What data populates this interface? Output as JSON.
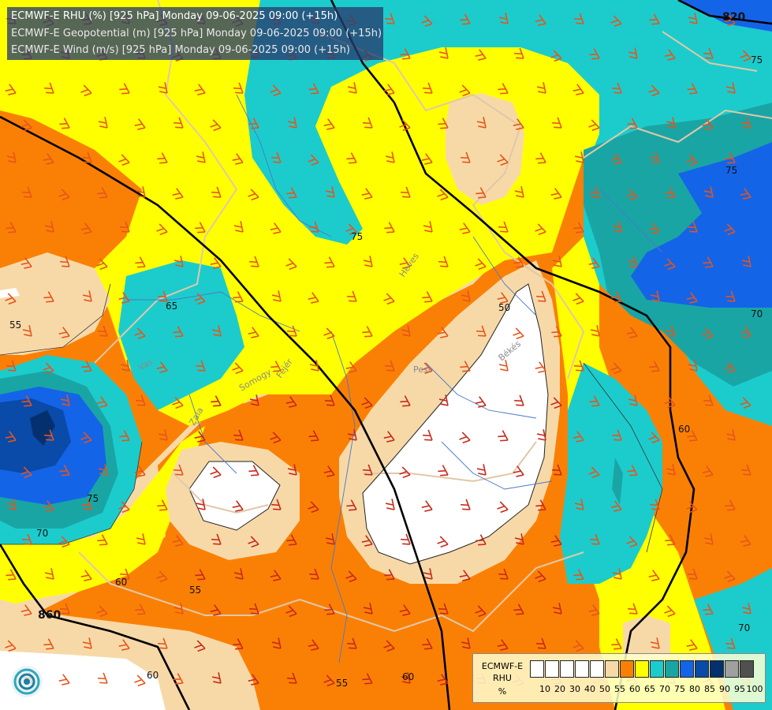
{
  "header": {
    "line1": "ECMWF-E RHU (%) [925 hPa] Monday 09-06-2025 09:00 (+15h)",
    "line2": "ECMWF-E Geopotential (m) [925 hPa] Monday 09-06-2025 09:00 (+15h)",
    "line3": "ECMWF-E Wind (m/s) [925 hPa] Monday 09-06-2025 09:00 (+15h)"
  },
  "legend": {
    "title_line1": "ECMWF-E",
    "title_line2": "RHU",
    "unit": "%",
    "ticks": [
      "10",
      "20",
      "30",
      "40",
      "50",
      "55",
      "60",
      "65",
      "70",
      "75",
      "80",
      "85",
      "90",
      "95",
      "100"
    ],
    "colors": [
      "#ffffff",
      "#ffffff",
      "#ffffff",
      "#ffffff",
      "#ffffff",
      "#f7d9a8",
      "#fa8005",
      "#ffff00",
      "#1ccccc",
      "#1aa5a5",
      "#1464e8",
      "#0a4aa8",
      "#053070",
      "#a0a0a0",
      "#505050"
    ]
  },
  "contour_labels": {
    "rhu": [
      "55",
      "65",
      "55",
      "75",
      "50",
      "75",
      "70",
      "75",
      "70",
      "60",
      "55",
      "60",
      "55",
      "60",
      "60",
      "70"
    ],
    "geopotential": [
      "820",
      "860"
    ]
  },
  "place_labels": [
    "Vas",
    "Somogy",
    "Fejér",
    "Pest",
    "Heves",
    "Békés",
    "Zala"
  ],
  "colors": {
    "white": "#ffffff",
    "tan": "#f7d9a8",
    "orange": "#fa8005",
    "yellow": "#ffff00",
    "cyan": "#1ccccc",
    "teal": "#1aa5a5",
    "blue": "#1464e8",
    "navy": "#0a4aa8",
    "darknavy": "#053070",
    "wind_barb": "#e6541a",
    "border": "#e0c8a8",
    "river": "#4a78c8"
  },
  "logo_name": "ecmwf-logo-icon"
}
